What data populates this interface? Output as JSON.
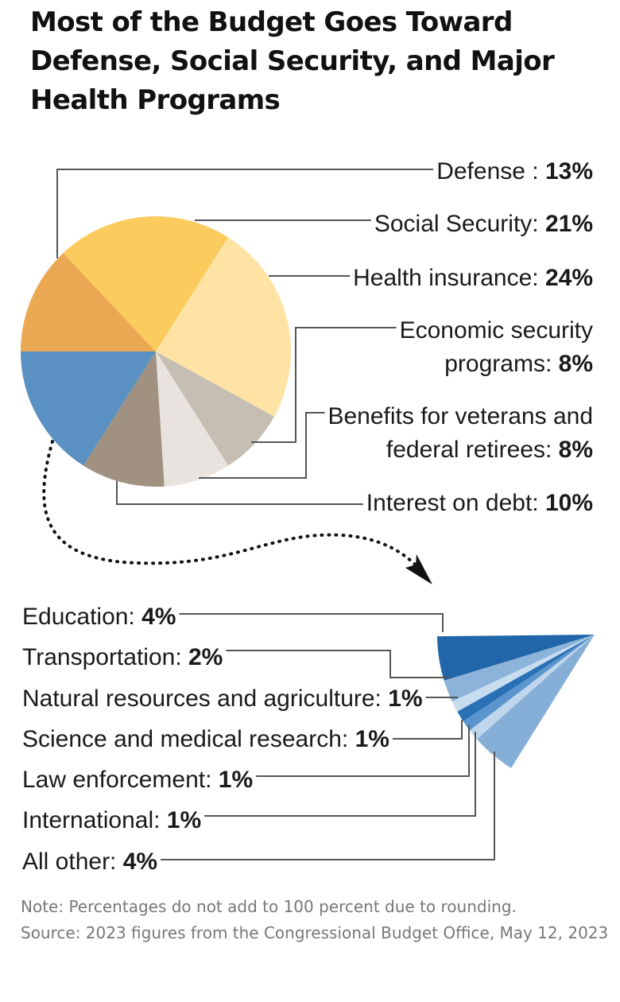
{
  "chart_data": {
    "type": "pie",
    "title": "Most of the Budget Goes Toward Defense, Social Security, and Major Health Programs",
    "colors": {
      "defense": "#EBA853",
      "social_security": "#FCCB5E",
      "health_insurance": "#FEE3A5",
      "economic_security": "#C6BDB3",
      "veterans": "#E8E3DF",
      "interest": "#A19181",
      "other_group": "#5A91C2"
    },
    "main_slices": [
      {
        "key": "defense",
        "label": "Defense : ",
        "value": 13,
        "value_label": "13%"
      },
      {
        "key": "social_security",
        "label": "Social Security: ",
        "value": 21,
        "value_label": "21%"
      },
      {
        "key": "health_insurance",
        "label": "Health insurance: ",
        "value": 24,
        "value_label": "24%"
      },
      {
        "key": "economic_security",
        "label_lines": [
          "Economic security",
          "programs: "
        ],
        "value": 8,
        "value_label": "8%"
      },
      {
        "key": "veterans",
        "label_lines": [
          "Benefits for veterans and",
          "federal retirees: "
        ],
        "value": 8,
        "value_label": "8%"
      },
      {
        "key": "interest",
        "label": "Interest on debt: ",
        "value": 10,
        "value_label": "10%"
      }
    ],
    "other_slices": [
      {
        "label": "Education: ",
        "value": 4,
        "value_label": "4%",
        "color": "#2166A8"
      },
      {
        "label": "Transportation: ",
        "value": 2,
        "value_label": "2%",
        "color": "#8CB3DA"
      },
      {
        "label": "Natural resources and agriculture: ",
        "value": 1,
        "value_label": "1%",
        "color": "#C8DCEF"
      },
      {
        "label": "Science and medical research: ",
        "value": 1,
        "value_label": "1%",
        "color": "#2A70B5"
      },
      {
        "label": "Law enforcement: ",
        "value": 1,
        "value_label": "1%",
        "color": "#5B95CD"
      },
      {
        "label": "International: ",
        "value": 1,
        "value_label": "1%",
        "color": "#C0D6EC"
      },
      {
        "label": "All other: ",
        "value": 4,
        "value_label": "4%",
        "color": "#86AFD8"
      }
    ]
  },
  "notes": {
    "note": "Note: Percentages do not add to 100 percent due to rounding.",
    "source": "Source: 2023 figures from the Congressional Budget Office, May 12, 2023"
  }
}
